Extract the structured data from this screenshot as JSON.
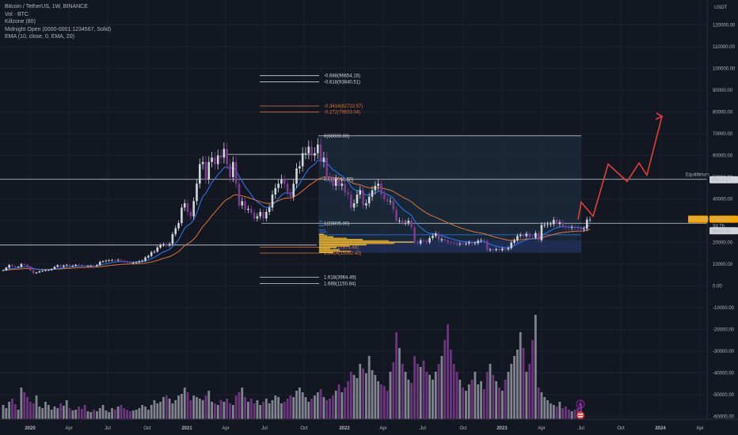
{
  "legend": {
    "title": "Bitcoin / TetherUS, 1W, BINANCE",
    "vol": "Vol · BTC",
    "killzone": "Killzone (80)",
    "midnight": "Midnight Open (0000-0001:1234567, Solid)",
    "ema": "EMA (10, close, 0, EMA, 20)"
  },
  "currency": "USDT",
  "y_axis": {
    "ticks": [
      "120000.00",
      "110000.00",
      "100000.00",
      "90000.00",
      "80000.00",
      "70000.00",
      "60000.00",
      "50000.00",
      "40000.00",
      "30000.00",
      "20000.00",
      "10000.00",
      "0.00",
      "-10000.00",
      "-20000.00",
      "-30000.00",
      "-40000.00",
      "-50000.00",
      "-60000.00"
    ],
    "values": [
      120000,
      110000,
      100000,
      90000,
      80000,
      70000,
      60000,
      50000,
      40000,
      30000,
      20000,
      10000,
      0,
      -10000,
      -20000,
      -30000,
      -40000,
      -50000,
      -60000
    ]
  },
  "x_axis": {
    "labels": [
      "2020",
      "Apr",
      "Jul",
      "Oct",
      "2021",
      "Apr",
      "Jul",
      "Oct",
      "2022",
      "Apr",
      "Jul",
      "Oct",
      "2023",
      "Apr",
      "Jul",
      "Oct",
      "2024",
      "Apr"
    ],
    "bold": [
      "2020",
      "2021",
      "2022",
      "2023",
      "2024"
    ]
  },
  "fib_levels": [
    {
      "label": "-0.688(96654.16)",
      "color": "#d1d4dc"
    },
    {
      "label": "-0.618(93840.51)",
      "color": "#d1d4dc"
    },
    {
      "label": "-0.3414(82722.57)",
      "color": "#e0743a"
    },
    {
      "label": "-0.272(79933.04)",
      "color": "#e0743a"
    },
    {
      "label": "0(69000.00)",
      "color": "#d1d4dc"
    },
    {
      "label": "0.5(49012.50)",
      "color": "#d1d4dc"
    },
    {
      "label": "1(28805.00)",
      "color": "#d1d4dc"
    },
    {
      "label": "1.272(17873.48)",
      "color": "#e0743a"
    },
    {
      "label": "1.3414(15082.43)",
      "color": "#e0743a"
    },
    {
      "label": "1.618(3964.49)",
      "color": "#d1d4dc"
    },
    {
      "label": "1.688(1150.84)",
      "color": "#d1d4dc"
    }
  ],
  "equilibrium_label": "Equilibrium",
  "price_tags": {
    "equilibrium": "49012.17",
    "symbol": "BTCUSDT",
    "last": "30505.23",
    "countdown": "3d 7h",
    "level": "28805.00"
  },
  "colors": {
    "background": "#131722",
    "candle": "#d1d4dc",
    "purple": "#7b3c8e",
    "ema_fast": "#3179f5",
    "ema_slow": "#e0743a",
    "projection": "#e0403a",
    "fib_white": "#d1d4dc",
    "fib_orange": "#e0743a",
    "zone": "#1d3346"
  },
  "chart_data": {
    "type": "candlestick",
    "symbol": "BTC/USDT",
    "interval": "1W",
    "ylim": [
      -60000,
      120000
    ],
    "weekly_close_approx": [
      7200,
      8400,
      9600,
      9000,
      8600,
      8800,
      10100,
      9700,
      8900,
      7100,
      5800,
      6200,
      6700,
      6900,
      7200,
      7300,
      7800,
      8800,
      9500,
      8800,
      9400,
      9700,
      9100,
      9300,
      9700,
      9600,
      9300,
      9100,
      9200,
      9300,
      9200,
      9600,
      11100,
      11300,
      11600,
      11800,
      11900,
      11700,
      12000,
      11600,
      11200,
      10800,
      10400,
      10700,
      10900,
      11400,
      11600,
      13100,
      13800,
      15500,
      15800,
      17700,
      18800,
      19200,
      18600,
      19300,
      23800,
      26500,
      28900,
      36000,
      38000,
      34000,
      32000,
      39000,
      47000,
      56000,
      57000,
      49000,
      57000,
      59000,
      56000,
      60000,
      59000,
      63000,
      56000,
      50000,
      57000,
      47000,
      37000,
      39000,
      35000,
      35500,
      33700,
      31000,
      32000,
      34000,
      31000,
      34000,
      36000,
      42000,
      45000,
      47000,
      49000,
      47000,
      43000,
      41000,
      47000,
      54000,
      55000,
      61000,
      61000,
      64000,
      60000,
      61000,
      65000,
      57000,
      59000,
      50000,
      49000,
      46000,
      49000,
      46000,
      47000,
      43000,
      42000,
      36000,
      38000,
      42000,
      44000,
      37000,
      38000,
      41000,
      44000,
      46000,
      47000,
      42000,
      40000,
      39000,
      39000,
      35000,
      30000,
      30000,
      29000,
      29000,
      30000,
      27000,
      20000,
      19500,
      21000,
      20800,
      20000,
      22000,
      23000,
      24000,
      21000,
      21500,
      21000,
      20000,
      19800,
      19500,
      19100,
      19400,
      19300,
      19500,
      20000,
      19500,
      19700,
      20800,
      21000,
      20600,
      16500,
      16700,
      16500,
      16900,
      16400,
      17100,
      16800,
      17400,
      19900,
      21000,
      23000,
      23500,
      22900,
      24000,
      22500,
      22300,
      24300,
      21000,
      28000,
      28000,
      28300,
      28400,
      30400,
      28500,
      29200,
      27500,
      27000,
      26700,
      27000,
      26800,
      26500,
      25900,
      26300,
      30500,
      30500
    ],
    "ema_10": "blue line tracking price closely",
    "ema_20": "orange line smoothing price",
    "fib_levels": [
      {
        "ratio": -0.688,
        "price": 96654.16
      },
      {
        "ratio": -0.618,
        "price": 93840.51
      },
      {
        "ratio": -0.3414,
        "price": 82722.57
      },
      {
        "ratio": -0.272,
        "price": 79933.04
      },
      {
        "ratio": 0,
        "price": 69000
      },
      {
        "ratio": 0.5,
        "price": 49012.5
      },
      {
        "ratio": 1,
        "price": 28805
      },
      {
        "ratio": 1.272,
        "price": 17873.48
      },
      {
        "ratio": 1.3414,
        "price": 15082.43
      },
      {
        "ratio": 1.618,
        "price": 3964.49
      },
      {
        "ratio": 1.688,
        "price": 1150.84
      }
    ],
    "horizontal_levels": [
      69000,
      49012.17,
      28805,
      18800
    ],
    "projection_path": [
      30500,
      38500,
      32000,
      56000,
      48000,
      56500,
      51000,
      78000
    ],
    "last_price": 30505.23,
    "volume": "histogram at bottom; purple and grey bars"
  }
}
